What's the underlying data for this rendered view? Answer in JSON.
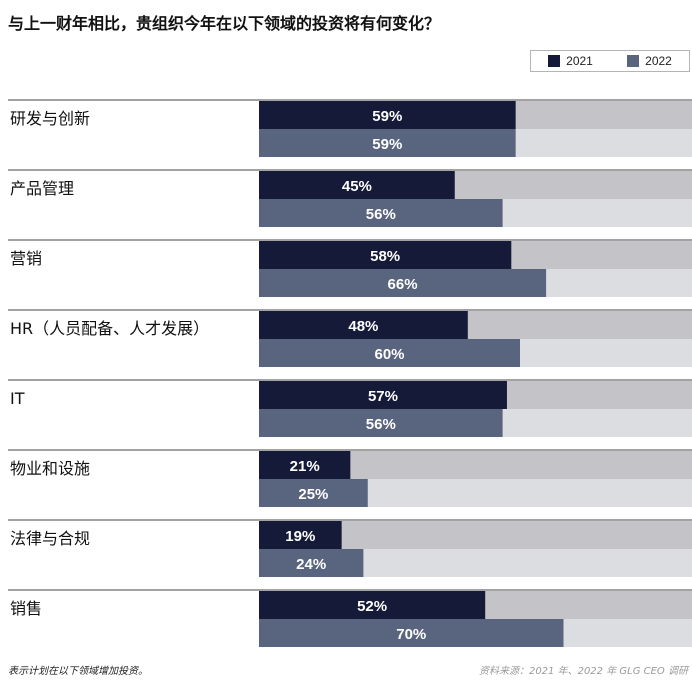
{
  "title": "与上一财年相比，贵组织今年在以下领域的投资将有何变化？",
  "footnote": "表示计划在以下领域增加投资。",
  "source": "资料来源：2021 年、2022 年 GLG CEO 调研",
  "colors": {
    "series_2021": "#151a38",
    "series_2022": "#59657e",
    "track_2021": "#c4c4c8",
    "track_2022": "#dcdde1",
    "rule": "#444444"
  },
  "chart_data": {
    "type": "bar",
    "orientation": "horizontal",
    "value_suffix": "%",
    "xlim": [
      0,
      100
    ],
    "legend_position": "top-right",
    "categories": [
      "研发与创新",
      "产品管理",
      "营销",
      "HR（人员配备、人才发展）",
      "IT",
      "物业和设施",
      "法律与合规",
      "销售"
    ],
    "series": [
      {
        "name": "2021",
        "values": [
          59,
          45,
          58,
          48,
          57,
          21,
          19,
          52
        ]
      },
      {
        "name": "2022",
        "values": [
          59,
          56,
          66,
          60,
          56,
          25,
          24,
          70
        ]
      }
    ]
  }
}
